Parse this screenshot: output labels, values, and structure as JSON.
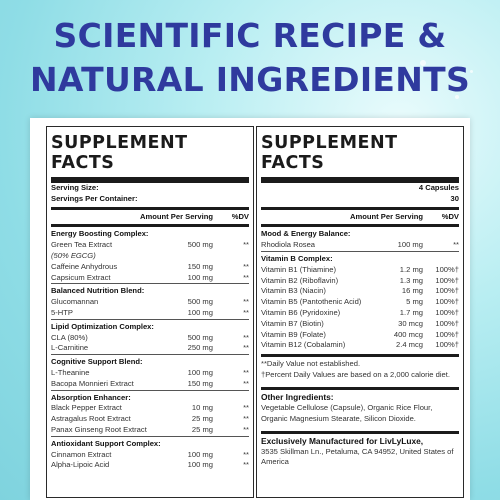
{
  "headline": [
    "SCIENTIFIC RECIPE &",
    "NATURAL INGREDIENTS"
  ],
  "left": {
    "title": "SUPPLEMENT FACTS",
    "serving_size_label": "Serving Size:",
    "servings_label": "Servings Per Container:",
    "col_amount": "Amount Per Serving",
    "col_dv": "%DV",
    "sections": [
      {
        "name": "Energy Boosting Complex:",
        "items": [
          {
            "n": "Green Tea Extract",
            "v": "500 mg",
            "d": "**"
          },
          {
            "n": "(50% EGCG)",
            "v": "",
            "d": "",
            "italic": true
          },
          {
            "n": "Caffeine Anhydrous",
            "v": "150 mg",
            "d": "**"
          },
          {
            "n": "Capsicum Extract",
            "v": "100 mg",
            "d": "**"
          }
        ]
      },
      {
        "name": "Balanced Nutrition Blend:",
        "items": [
          {
            "n": "Glucomannan",
            "v": "500 mg",
            "d": "**"
          },
          {
            "n": "5-HTP",
            "v": "100 mg",
            "d": "**"
          }
        ]
      },
      {
        "name": "Lipid Optimization Complex:",
        "items": [
          {
            "n": "CLA (80%)",
            "v": "500 mg",
            "d": "**"
          },
          {
            "n": "L-Carnitine",
            "v": "250 mg",
            "d": "**"
          }
        ]
      },
      {
        "name": "Cognitive Support Blend:",
        "items": [
          {
            "n": "L-Theanine",
            "v": "100 mg",
            "d": "**"
          },
          {
            "n": "Bacopa Monnieri Extract",
            "v": "150 mg",
            "d": "**"
          }
        ]
      },
      {
        "name": "Absorption Enhancer:",
        "items": [
          {
            "n": "Black Pepper Extract",
            "v": "10 mg",
            "d": "**"
          },
          {
            "n": "Astragalus Root Extract",
            "v": "25 mg",
            "d": "**"
          },
          {
            "n": "Panax Ginseng Root Extract",
            "v": "25 mg",
            "d": "**"
          }
        ]
      },
      {
        "name": "Antioxidant Support Complex:",
        "items": [
          {
            "n": "Cinnamon Extract",
            "v": "100 mg",
            "d": "**"
          },
          {
            "n": "Alpha-Lipoic Acid",
            "v": "100 mg",
            "d": "**"
          }
        ]
      }
    ]
  },
  "right": {
    "title": "SUPPLEMENT FACTS",
    "serving_size": "4 Capsules",
    "servings": "30",
    "col_amount": "Amount Per Serving",
    "col_dv": "%DV",
    "mood_name": "Mood & Energy Balance:",
    "mood_items": [
      {
        "n": "Rhodiola Rosea",
        "v": "100 mg",
        "d": "**"
      }
    ],
    "vitb_name": "Vitamin B Complex:",
    "vitb_items": [
      {
        "n": "Vitamin B1 (Thiamine)",
        "v": "1.2 mg",
        "d": "100%†"
      },
      {
        "n": "Vitamin B2 (Riboflavin)",
        "v": "1.3 mg",
        "d": "100%†"
      },
      {
        "n": "Vitamin B3 (Niacin)",
        "v": "16 mg",
        "d": "100%†"
      },
      {
        "n": "Vitamin B5 (Pantothenic Acid)",
        "v": "5 mg",
        "d": "100%†"
      },
      {
        "n": "Vitamin B6 (Pyridoxine)",
        "v": "1.7 mg",
        "d": "100%†"
      },
      {
        "n": "Vitamin B7 (Biotin)",
        "v": "30 mcg",
        "d": "100%†"
      },
      {
        "n": "Vitamin B9 (Folate)",
        "v": "400 mcg",
        "d": "100%†"
      },
      {
        "n": "Vitamin B12 (Cobalamin)",
        "v": "2.4 mcg",
        "d": "100%†"
      }
    ],
    "note1": "**Daily Value not established.",
    "note2": "†Percent Daily Values are based on a 2,000 calorie diet.",
    "other_title": "Other Ingredients:",
    "other_text": "Vegetable Cellulose (Capsule), Organic Rice Flour, Organic Magnesium Stearate, Silicon Dioxide.",
    "mfr_title": "Exclusively Manufactured for LivLyLuxe,",
    "mfr_text": "3535 Skillman Ln., Petaluma, CA 94952, United States of America"
  }
}
